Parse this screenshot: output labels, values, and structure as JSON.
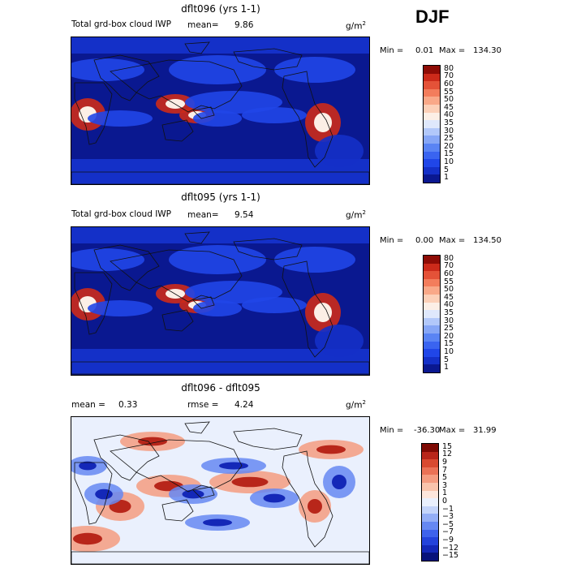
{
  "season": "DJF",
  "chart_data": [
    {
      "type": "heatmap",
      "title": "dflt096 (yrs 1-1)",
      "field_label": "Total grd-box cloud IWP",
      "mean_label": "mean=",
      "mean_value": "9.86",
      "units": "g/m",
      "units_sup": "2",
      "min_text": "Min =",
      "min_value": "0.01",
      "max_text": "Max =",
      "max_value": "134.30",
      "colorbar": {
        "labels": [
          "80",
          "70",
          "60",
          "55",
          "50",
          "45",
          "40",
          "35",
          "30",
          "25",
          "20",
          "15",
          "10",
          "5",
          "1"
        ],
        "levels": [
          1,
          5,
          10,
          15,
          20,
          25,
          30,
          35,
          40,
          45,
          50,
          55,
          60,
          70,
          80
        ],
        "colors": [
          "#0a1890",
          "#1430c8",
          "#2046e8",
          "#3a64f0",
          "#5a84f4",
          "#86a6f6",
          "#b2c8fa",
          "#dfe8fc",
          "#fcefe6",
          "#fcd0b8",
          "#f9a888",
          "#f37d5c",
          "#e45238",
          "#cc2a1a",
          "#8e0c06"
        ]
      },
      "base_value": 4
    },
    {
      "type": "heatmap",
      "title": "dflt095 (yrs 1-1)",
      "field_label": "Total grd-box cloud IWP",
      "mean_label": "mean=",
      "mean_value": "9.54",
      "units": "g/m",
      "units_sup": "2",
      "min_text": "Min =",
      "min_value": "0.00",
      "max_text": "Max =",
      "max_value": "134.50",
      "colorbar": {
        "labels": [
          "80",
          "70",
          "60",
          "55",
          "50",
          "45",
          "40",
          "35",
          "30",
          "25",
          "20",
          "15",
          "10",
          "5",
          "1"
        ],
        "levels": [
          1,
          5,
          10,
          15,
          20,
          25,
          30,
          35,
          40,
          45,
          50,
          55,
          60,
          70,
          80
        ],
        "colors": [
          "#0a1890",
          "#1430c8",
          "#2046e8",
          "#3a64f0",
          "#5a84f4",
          "#86a6f6",
          "#b2c8fa",
          "#dfe8fc",
          "#fcefe6",
          "#fcd0b8",
          "#f9a888",
          "#f37d5c",
          "#e45238",
          "#cc2a1a",
          "#8e0c06"
        ]
      },
      "base_value": 4
    },
    {
      "type": "heatmap",
      "title": "dflt096 - dflt095",
      "mean_label": "mean =",
      "mean_value": "0.33",
      "rmse_label": "rmse =",
      "rmse_value": "4.24",
      "units": "g/m",
      "units_sup": "2",
      "min_text": "Min =",
      "min_value": "-36.30",
      "max_text": "Max =",
      "max_value": "31.99",
      "colorbar": {
        "labels": [
          "15",
          "12",
          "9",
          "7",
          "5",
          "3",
          "1",
          "0",
          "−1",
          "−3",
          "−5",
          "−7",
          "−9",
          "−12",
          "−15"
        ],
        "levels": [
          -15,
          -12,
          -9,
          -7,
          -5,
          -3,
          -1,
          0,
          1,
          3,
          5,
          7,
          9,
          12,
          15
        ],
        "colors": [
          "#08127a",
          "#1428b8",
          "#2443dc",
          "#3e62ec",
          "#6688f2",
          "#94aef6",
          "#c4d4fa",
          "#eaf0fd",
          "#fde6dc",
          "#f9c4ac",
          "#f49c80",
          "#ea7256",
          "#d94a30",
          "#b8261a",
          "#7e0a04"
        ]
      },
      "base_value": 0.5
    }
  ]
}
